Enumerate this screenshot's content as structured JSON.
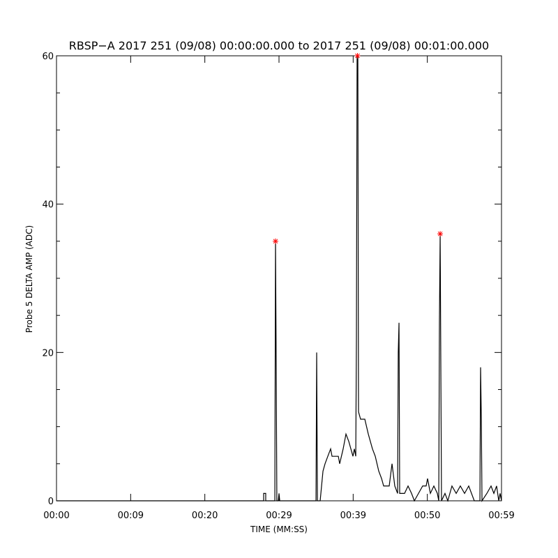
{
  "chart_data": {
    "type": "line",
    "title": "RBSP−A 2017 251 (09/08) 00:00:00.000 to 2017 251 (09/08) 00:01:00.000",
    "xlabel": "TIME (MM:SS)",
    "ylabel": "Probe 5 DELTA AMP (ADC)",
    "xlim": [
      0,
      60
    ],
    "ylim": [
      0,
      60
    ],
    "xticks": [
      {
        "value": 0,
        "label": "00:00"
      },
      {
        "value": 10,
        "label": "00:09"
      },
      {
        "value": 20,
        "label": "00:20"
      },
      {
        "value": 30,
        "label": "00:29"
      },
      {
        "value": 40,
        "label": "00:39"
      },
      {
        "value": 50,
        "label": "00:50"
      },
      {
        "value": 60,
        "label": "00:59"
      }
    ],
    "yticks": [
      0,
      20,
      40,
      60
    ],
    "series": [
      {
        "color": "#000000",
        "x": [
          0,
          27.93,
          27.93,
          28.21,
          28.21,
          29.44,
          29.53,
          29.62,
          29.71,
          29.91,
          30.0,
          30.1,
          34.99,
          35.08,
          35.18,
          35.55,
          35.74,
          35.93,
          36.21,
          36.58,
          36.96,
          37.15,
          38.0,
          38.18,
          38.65,
          39.03,
          39.41,
          39.69,
          39.97,
          40.16,
          40.35,
          40.44,
          40.53,
          40.63,
          40.72,
          41.0,
          41.57,
          42.04,
          42.6,
          42.98,
          43.45,
          43.83,
          44.11,
          44.86,
          45.24,
          45.61,
          45.99,
          46.08,
          46.18,
          46.27,
          46.93,
          47.4,
          47.87,
          48.25,
          48.81,
          49.37,
          49.84,
          50.03,
          50.41,
          50.88,
          51.35,
          51.54,
          51.63,
          51.73,
          51.91,
          52.38,
          52.76,
          53.32,
          53.89,
          54.45,
          55.02,
          55.58,
          56.33,
          57.09,
          57.18,
          57.28,
          57.37,
          58.03,
          58.59,
          58.97,
          59.34,
          59.63,
          59.81,
          60
        ],
        "values": [
          0,
          0,
          1,
          1,
          0,
          0,
          35,
          19,
          0,
          0,
          1,
          0,
          0,
          20,
          0,
          0,
          2,
          4,
          5,
          6,
          7,
          6,
          6,
          5,
          7,
          9,
          8,
          7,
          6,
          7,
          6,
          22,
          60,
          60,
          12,
          11,
          11,
          9,
          7,
          6,
          4,
          3,
          2,
          2,
          5,
          2,
          1,
          20,
          24,
          1,
          1,
          2,
          1,
          0,
          1,
          2,
          2,
          3,
          1,
          2,
          1,
          0,
          24,
          36,
          0,
          1,
          0,
          2,
          1,
          2,
          1,
          2,
          0,
          0,
          18,
          11,
          0,
          1,
          2,
          1,
          2,
          0,
          1,
          0
        ]
      },
      {
        "type": "scatter",
        "color": "#ff0000",
        "x": [
          29.53,
          40.58,
          51.73
        ],
        "values": [
          35,
          60,
          36
        ]
      }
    ]
  }
}
